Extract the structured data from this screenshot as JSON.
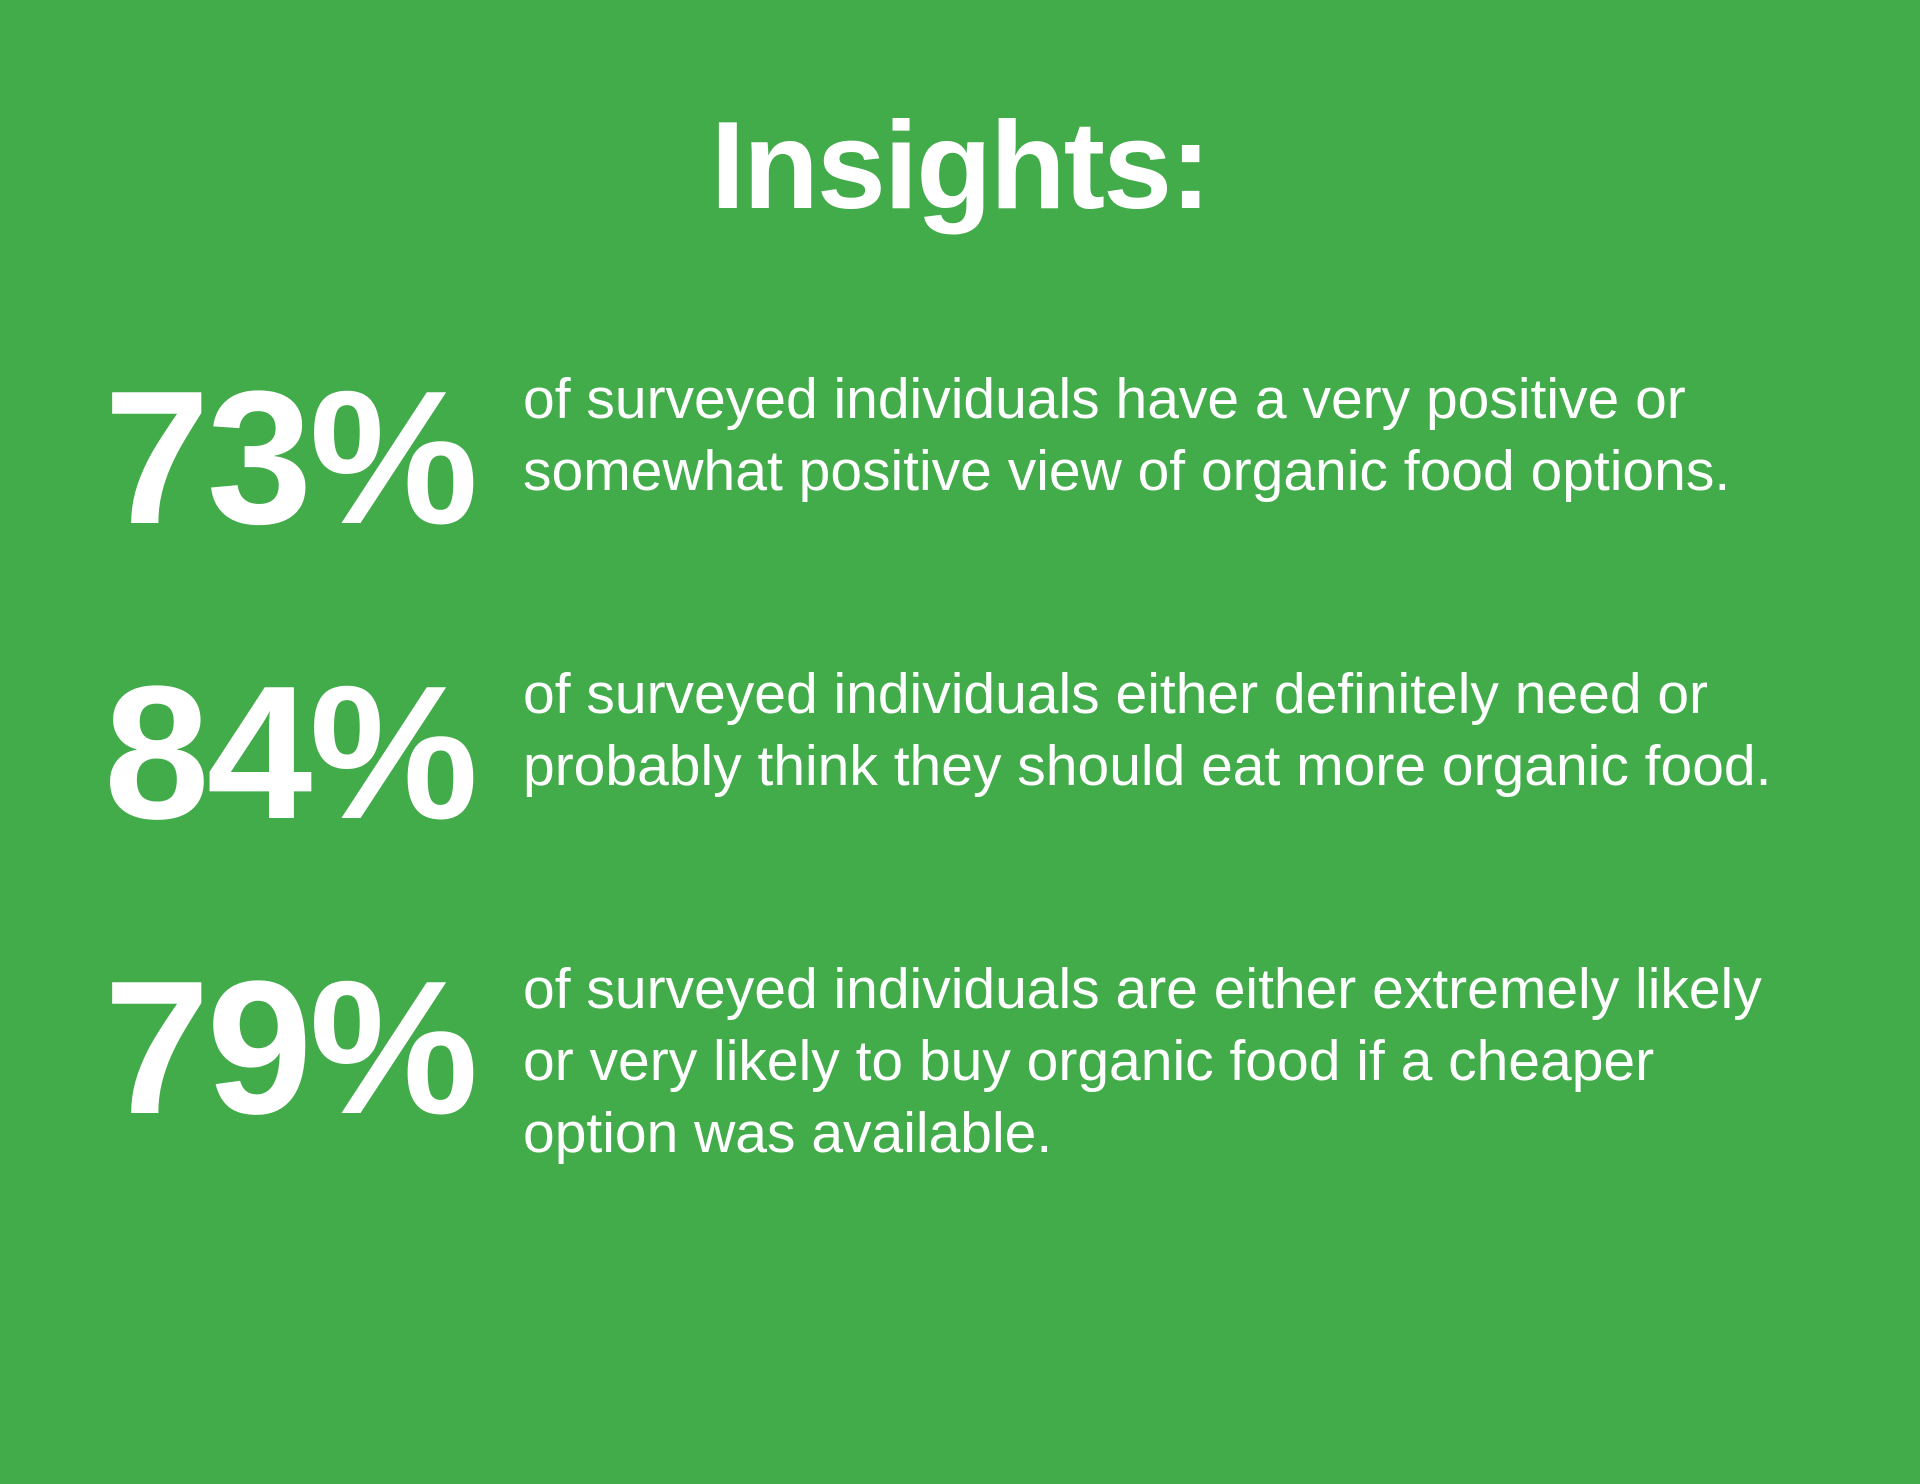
{
  "page": {
    "background_color": "#42ab4a",
    "text_color": "#ffffff"
  },
  "title": "Insights:",
  "stats": [
    {
      "value": "73%",
      "description": "of surveyed individuals have a very positive or\nsomewhat positive view of organic food options."
    },
    {
      "value": "84%",
      "description": "of surveyed individuals either definitely need or\nprobably think they should eat more organic food."
    },
    {
      "value": "79%",
      "description": "of surveyed individuals are either extremely likely\nor very likely to buy organic food if a cheaper\noption was available."
    }
  ]
}
